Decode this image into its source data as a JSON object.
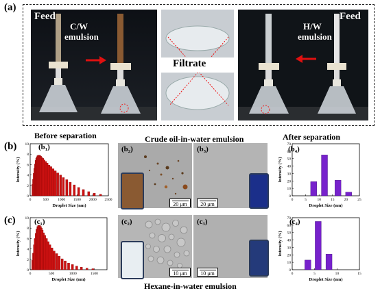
{
  "panel_labels": {
    "a": "(a)",
    "b": "(b)",
    "c": "(c)"
  },
  "panel_a": {
    "feed_left": "Feed",
    "feed_right": "Feed",
    "cw_label_line1": "C/W",
    "cw_label_line2": "emulsion",
    "hw_label_line1": "H/W",
    "hw_label_line2": "emulsion",
    "filtrate": "Filtrate"
  },
  "headings": {
    "before": "Before separation",
    "crude": "Crude oil-in-water emulsion",
    "after": "After separation",
    "hexane": "Hexane-in-water emulsion"
  },
  "sub_labels": {
    "b1": "(b₁)",
    "b2": "(b₂)",
    "b3": "(b₃)",
    "b4": "(b₄)",
    "c1": "(c₁)",
    "c2": "(c₂)",
    "c3": "(c₃)",
    "c4": "(c₄)"
  },
  "scale_bars": {
    "b2": "20 μm",
    "b3": "20 μm",
    "c2": "10 μm",
    "c3": "10 μm"
  },
  "colors": {
    "red": "#cc1111",
    "purple": "#7722cc"
  },
  "chart_data": [
    {
      "id": "b1",
      "type": "bar",
      "xlabel": "Droplet Size (nm)",
      "ylabel": "Intensity (%)",
      "xlim": [
        0,
        2500
      ],
      "ylim": [
        0,
        10
      ],
      "xticks": [
        0,
        500,
        1000,
        1500,
        2000,
        2500
      ],
      "yticks": [
        0,
        2,
        4,
        6,
        8,
        10
      ],
      "x": [
        90,
        110,
        130,
        150,
        170,
        190,
        210,
        230,
        250,
        270,
        290,
        310,
        330,
        360,
        400,
        440,
        490,
        540,
        600,
        660,
        730,
        800,
        880,
        970,
        1060,
        1170,
        1280,
        1410,
        1550,
        1700,
        1870,
        2050,
        2250
      ],
      "values": [
        2.2,
        3.2,
        4.3,
        5.3,
        6.1,
        6.8,
        7.2,
        7.5,
        7.7,
        7.8,
        7.8,
        7.7,
        7.6,
        7.4,
        7.2,
        6.9,
        6.6,
        6.3,
        5.9,
        5.6,
        5.2,
        4.8,
        4.4,
        4.0,
        3.5,
        3.1,
        2.6,
        2.1,
        1.6,
        1.2,
        0.8,
        0.5,
        0.3
      ]
    },
    {
      "id": "b4",
      "type": "bar",
      "xlabel": "Droplet Size (nm)",
      "ylabel": "Intensity (%)",
      "xlim": [
        0,
        25
      ],
      "ylim": [
        0,
        70
      ],
      "xticks": [
        0,
        5,
        10,
        15,
        20,
        25
      ],
      "yticks": [
        0,
        10,
        20,
        30,
        40,
        50,
        60,
        70
      ],
      "x": [
        8,
        12,
        17,
        21
      ],
      "values": [
        19,
        55,
        21,
        5
      ]
    },
    {
      "id": "c1",
      "type": "bar",
      "xlabel": "Droplet Size (nm)",
      "ylabel": "Intensity (%)",
      "xlim": [
        0,
        1800
      ],
      "ylim": [
        0,
        10
      ],
      "xticks": [
        0,
        500,
        1000,
        1500
      ],
      "yticks": [
        0,
        2,
        4,
        6,
        8,
        10
      ],
      "x": [
        60,
        80,
        100,
        120,
        140,
        160,
        180,
        200,
        220,
        240,
        260,
        280,
        310,
        340,
        380,
        420,
        460,
        510,
        560,
        620,
        680,
        750,
        820,
        900,
        990,
        1090,
        1200,
        1330,
        1470
      ],
      "values": [
        1.8,
        3.2,
        4.8,
        6.0,
        7.0,
        7.8,
        8.3,
        8.5,
        8.5,
        8.3,
        8.0,
        7.6,
        7.1,
        6.6,
        6.0,
        5.4,
        4.8,
        4.2,
        3.6,
        3.1,
        2.6,
        2.1,
        1.7,
        1.3,
        1.0,
        0.7,
        0.5,
        0.3,
        0.2
      ]
    },
    {
      "id": "c4",
      "type": "bar",
      "xlabel": "Droplet Size (nm)",
      "ylabel": "Intensity (%)",
      "xlim": [
        0,
        15
      ],
      "ylim": [
        0,
        70
      ],
      "xticks": [
        0,
        5,
        10,
        15
      ],
      "yticks": [
        0,
        10,
        20,
        30,
        40,
        50,
        60,
        70
      ],
      "x": [
        3.5,
        5.8,
        8.2
      ],
      "values": [
        13,
        65,
        21
      ]
    }
  ]
}
